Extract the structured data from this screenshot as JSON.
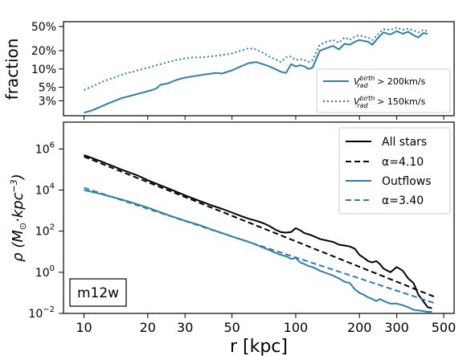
{
  "chart_data": [
    {
      "type": "line",
      "panel": "top",
      "ylabel": "fraction",
      "xscale": "log",
      "yscale": "log",
      "xlim": [
        8,
        560
      ],
      "ylim": [
        0.017,
        0.6
      ],
      "yticks": [
        {
          "value": 0.03,
          "label": "3%"
        },
        {
          "value": 0.05,
          "label": "5%"
        },
        {
          "value": 0.1,
          "label": "10%"
        },
        {
          "value": 0.2,
          "label": "20%"
        },
        {
          "value": 0.5,
          "label": "50%"
        }
      ],
      "legend": {
        "placement": "bottom-right"
      },
      "series": [
        {
          "name": "V_rad^birth > 200km/s",
          "name_main": "V",
          "name_sup": "birth",
          "name_sub": "rad",
          "name_rest": " > 200km/s",
          "style": "solid",
          "color": "#2e7ea8",
          "x": [
            10,
            11,
            12,
            13,
            14,
            15,
            16,
            17,
            18,
            19,
            20,
            21,
            22,
            23,
            25,
            27,
            29,
            30,
            33,
            36,
            39,
            42,
            45,
            50,
            55,
            60,
            65,
            70,
            75,
            80,
            85,
            90,
            95,
            100,
            105,
            110,
            115,
            120,
            130,
            140,
            150,
            160,
            170,
            180,
            190,
            200,
            210,
            220,
            230,
            240,
            250,
            260,
            280,
            300,
            320,
            340,
            360,
            380,
            400,
            420
          ],
          "y": [
            0.019,
            0.021,
            0.024,
            0.027,
            0.03,
            0.033,
            0.035,
            0.037,
            0.039,
            0.041,
            0.043,
            0.045,
            0.048,
            0.055,
            0.058,
            0.065,
            0.07,
            0.072,
            0.076,
            0.08,
            0.083,
            0.086,
            0.084,
            0.095,
            0.11,
            0.125,
            0.13,
            0.12,
            0.11,
            0.1,
            0.09,
            0.086,
            0.12,
            0.11,
            0.115,
            0.11,
            0.1,
            0.105,
            0.2,
            0.22,
            0.24,
            0.21,
            0.26,
            0.25,
            0.28,
            0.3,
            0.29,
            0.28,
            0.25,
            0.3,
            0.35,
            0.4,
            0.37,
            0.42,
            0.38,
            0.41,
            0.36,
            0.33,
            0.39,
            0.38
          ]
        },
        {
          "name": "V_rad^birth > 150km/s",
          "name_main": "V",
          "name_sup": "birth",
          "name_sub": "rad",
          "name_rest": " > 150km/s",
          "style": "dotted",
          "color": "#2e7ea8",
          "x": [
            10,
            11,
            12,
            13,
            14,
            15,
            16,
            17,
            18,
            19,
            20,
            21,
            22,
            23,
            25,
            27,
            29,
            30,
            33,
            36,
            39,
            42,
            45,
            50,
            55,
            60,
            65,
            70,
            75,
            80,
            85,
            90,
            95,
            100,
            105,
            110,
            115,
            120,
            130,
            140,
            150,
            160,
            170,
            180,
            190,
            200,
            210,
            220,
            230,
            240,
            250,
            260,
            280,
            300,
            320,
            340,
            360,
            380,
            400,
            420
          ],
          "y": [
            0.045,
            0.052,
            0.06,
            0.067,
            0.073,
            0.08,
            0.086,
            0.09,
            0.096,
            0.1,
            0.104,
            0.11,
            0.115,
            0.12,
            0.13,
            0.14,
            0.145,
            0.15,
            0.155,
            0.155,
            0.16,
            0.165,
            0.17,
            0.18,
            0.2,
            0.22,
            0.21,
            0.185,
            0.16,
            0.145,
            0.13,
            0.155,
            0.16,
            0.14,
            0.145,
            0.14,
            0.13,
            0.14,
            0.25,
            0.28,
            0.3,
            0.27,
            0.33,
            0.3,
            0.34,
            0.36,
            0.34,
            0.33,
            0.3,
            0.35,
            0.4,
            0.45,
            0.44,
            0.48,
            0.44,
            0.46,
            0.43,
            0.4,
            0.44,
            0.42
          ]
        }
      ]
    },
    {
      "type": "line",
      "panel": "bottom",
      "xlabel": "r [kpc]",
      "ylabel": "ρ (M⊙·kpc⁻³)",
      "ylabel_parts": {
        "rho": "ρ (M",
        "sun": "⊙",
        "mid": "·kpc",
        "exp": "−3",
        "close": ")"
      },
      "annotation": "m12w",
      "xscale": "log",
      "yscale": "log",
      "xlim": [
        8,
        560
      ],
      "ylim": [
        0.01,
        20000000
      ],
      "xticks": [
        {
          "value": 10,
          "label": "10"
        },
        {
          "value": 20,
          "label": "20"
        },
        {
          "value": 30,
          "label": "30"
        },
        {
          "value": 50,
          "label": "50"
        },
        {
          "value": 100,
          "label": "100"
        },
        {
          "value": 200,
          "label": "200"
        },
        {
          "value": 300,
          "label": "300"
        },
        {
          "value": 500,
          "label": "500"
        }
      ],
      "yticks": [
        {
          "value": 0.01,
          "base": "10",
          "exp": "−2"
        },
        {
          "value": 1,
          "base": "10",
          "exp": "0"
        },
        {
          "value": 100,
          "base": "10",
          "exp": "2"
        },
        {
          "value": 10000,
          "base": "10",
          "exp": "4"
        },
        {
          "value": 1000000,
          "base": "10",
          "exp": "6"
        }
      ],
      "legend": {
        "placement": "top-right"
      },
      "series": [
        {
          "name": "All stars",
          "style": "solid",
          "color": "#000000",
          "x": [
            10,
            12,
            15,
            18,
            20,
            25,
            30,
            35,
            40,
            45,
            50,
            55,
            60,
            65,
            70,
            75,
            80,
            85,
            90,
            95,
            100,
            105,
            110,
            115,
            120,
            130,
            140,
            150,
            160,
            170,
            180,
            190,
            200,
            210,
            220,
            230,
            240,
            250,
            260,
            280,
            300,
            320,
            340,
            360,
            380,
            400,
            420,
            440
          ],
          "y": [
            500000,
            250000,
            100000,
            50000,
            30000,
            12000,
            5500,
            3000,
            1800,
            1200,
            800,
            550,
            400,
            320,
            250,
            180,
            120,
            90,
            85,
            90,
            140,
            110,
            80,
            70,
            60,
            42,
            35,
            30,
            22,
            20,
            18,
            14,
            7,
            5,
            3.5,
            3,
            3.5,
            2.5,
            1.5,
            1,
            1.8,
            1.2,
            0.5,
            0.3,
            0.08,
            0.04,
            0.02,
            0.018
          ]
        },
        {
          "name": "α=4.10",
          "style": "dashed",
          "color": "#000000",
          "x": [
            10,
            460
          ],
          "y": [
            420000,
            0.06
          ]
        },
        {
          "name": "Outflows",
          "style": "solid",
          "color": "#2e7ea8",
          "x": [
            10,
            12,
            15,
            18,
            20,
            25,
            30,
            35,
            40,
            45,
            50,
            55,
            60,
            65,
            70,
            75,
            80,
            85,
            90,
            95,
            100,
            105,
            110,
            115,
            120,
            130,
            140,
            150,
            160,
            170,
            180,
            190,
            200,
            210,
            220,
            230,
            240,
            250,
            260,
            280,
            300,
            320,
            340,
            360,
            380,
            400,
            420,
            440
          ],
          "y": [
            10000,
            6500,
            3500,
            2000,
            1400,
            600,
            320,
            200,
            120,
            80,
            55,
            40,
            30,
            22,
            16,
            12,
            9,
            7,
            6,
            4.5,
            5,
            3,
            2.5,
            2,
            1.8,
            1.2,
            0.9,
            0.7,
            0.5,
            0.35,
            0.3,
            0.15,
            0.1,
            0.08,
            0.06,
            0.05,
            0.04,
            0.05,
            0.04,
            0.03,
            0.03,
            0.025,
            0.02,
            0.015,
            0.014,
            0.013,
            0.012,
            0.012
          ]
        },
        {
          "name": "α=3.40",
          "style": "dashed",
          "color": "#2e7ea8",
          "x": [
            10,
            460
          ],
          "y": [
            13000,
            0.03
          ]
        }
      ]
    }
  ]
}
